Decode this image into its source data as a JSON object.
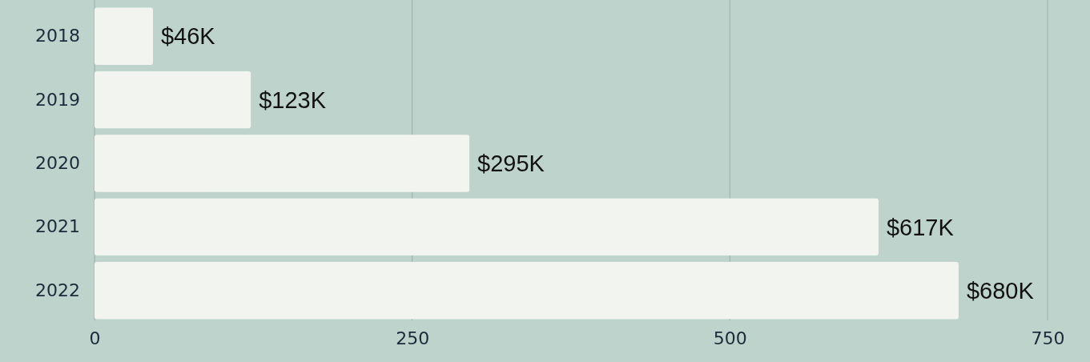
{
  "chart_data": {
    "type": "bar",
    "orientation": "horizontal",
    "categories": [
      "2018",
      "2019",
      "2020",
      "2021",
      "2022"
    ],
    "values": [
      46,
      123,
      295,
      617,
      680
    ],
    "value_labels": [
      "$46K",
      "$123K",
      "$295K",
      "$617K",
      "$680K"
    ],
    "color": "#f2f4ef",
    "xlim": [
      0,
      750
    ],
    "xticks": [
      0,
      250,
      500,
      750
    ],
    "grid": "x"
  }
}
